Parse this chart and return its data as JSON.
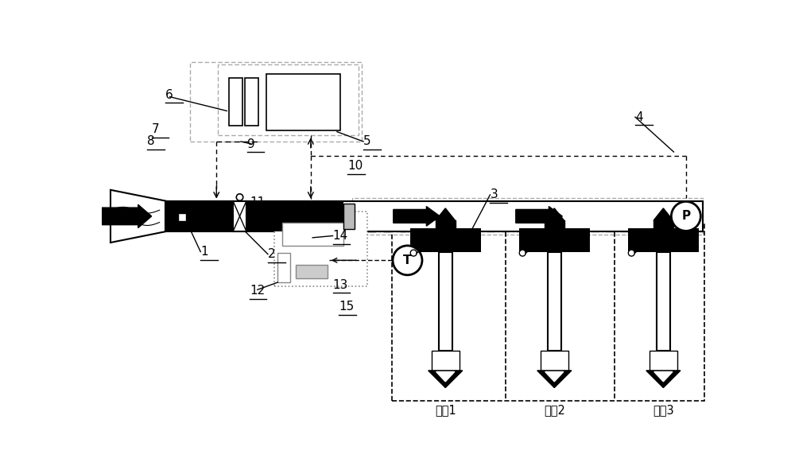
{
  "bg_color": "#ffffff",
  "fig_width": 10.0,
  "fig_height": 5.91,
  "room_labels": [
    "房间1",
    "房间2",
    "房间3"
  ]
}
